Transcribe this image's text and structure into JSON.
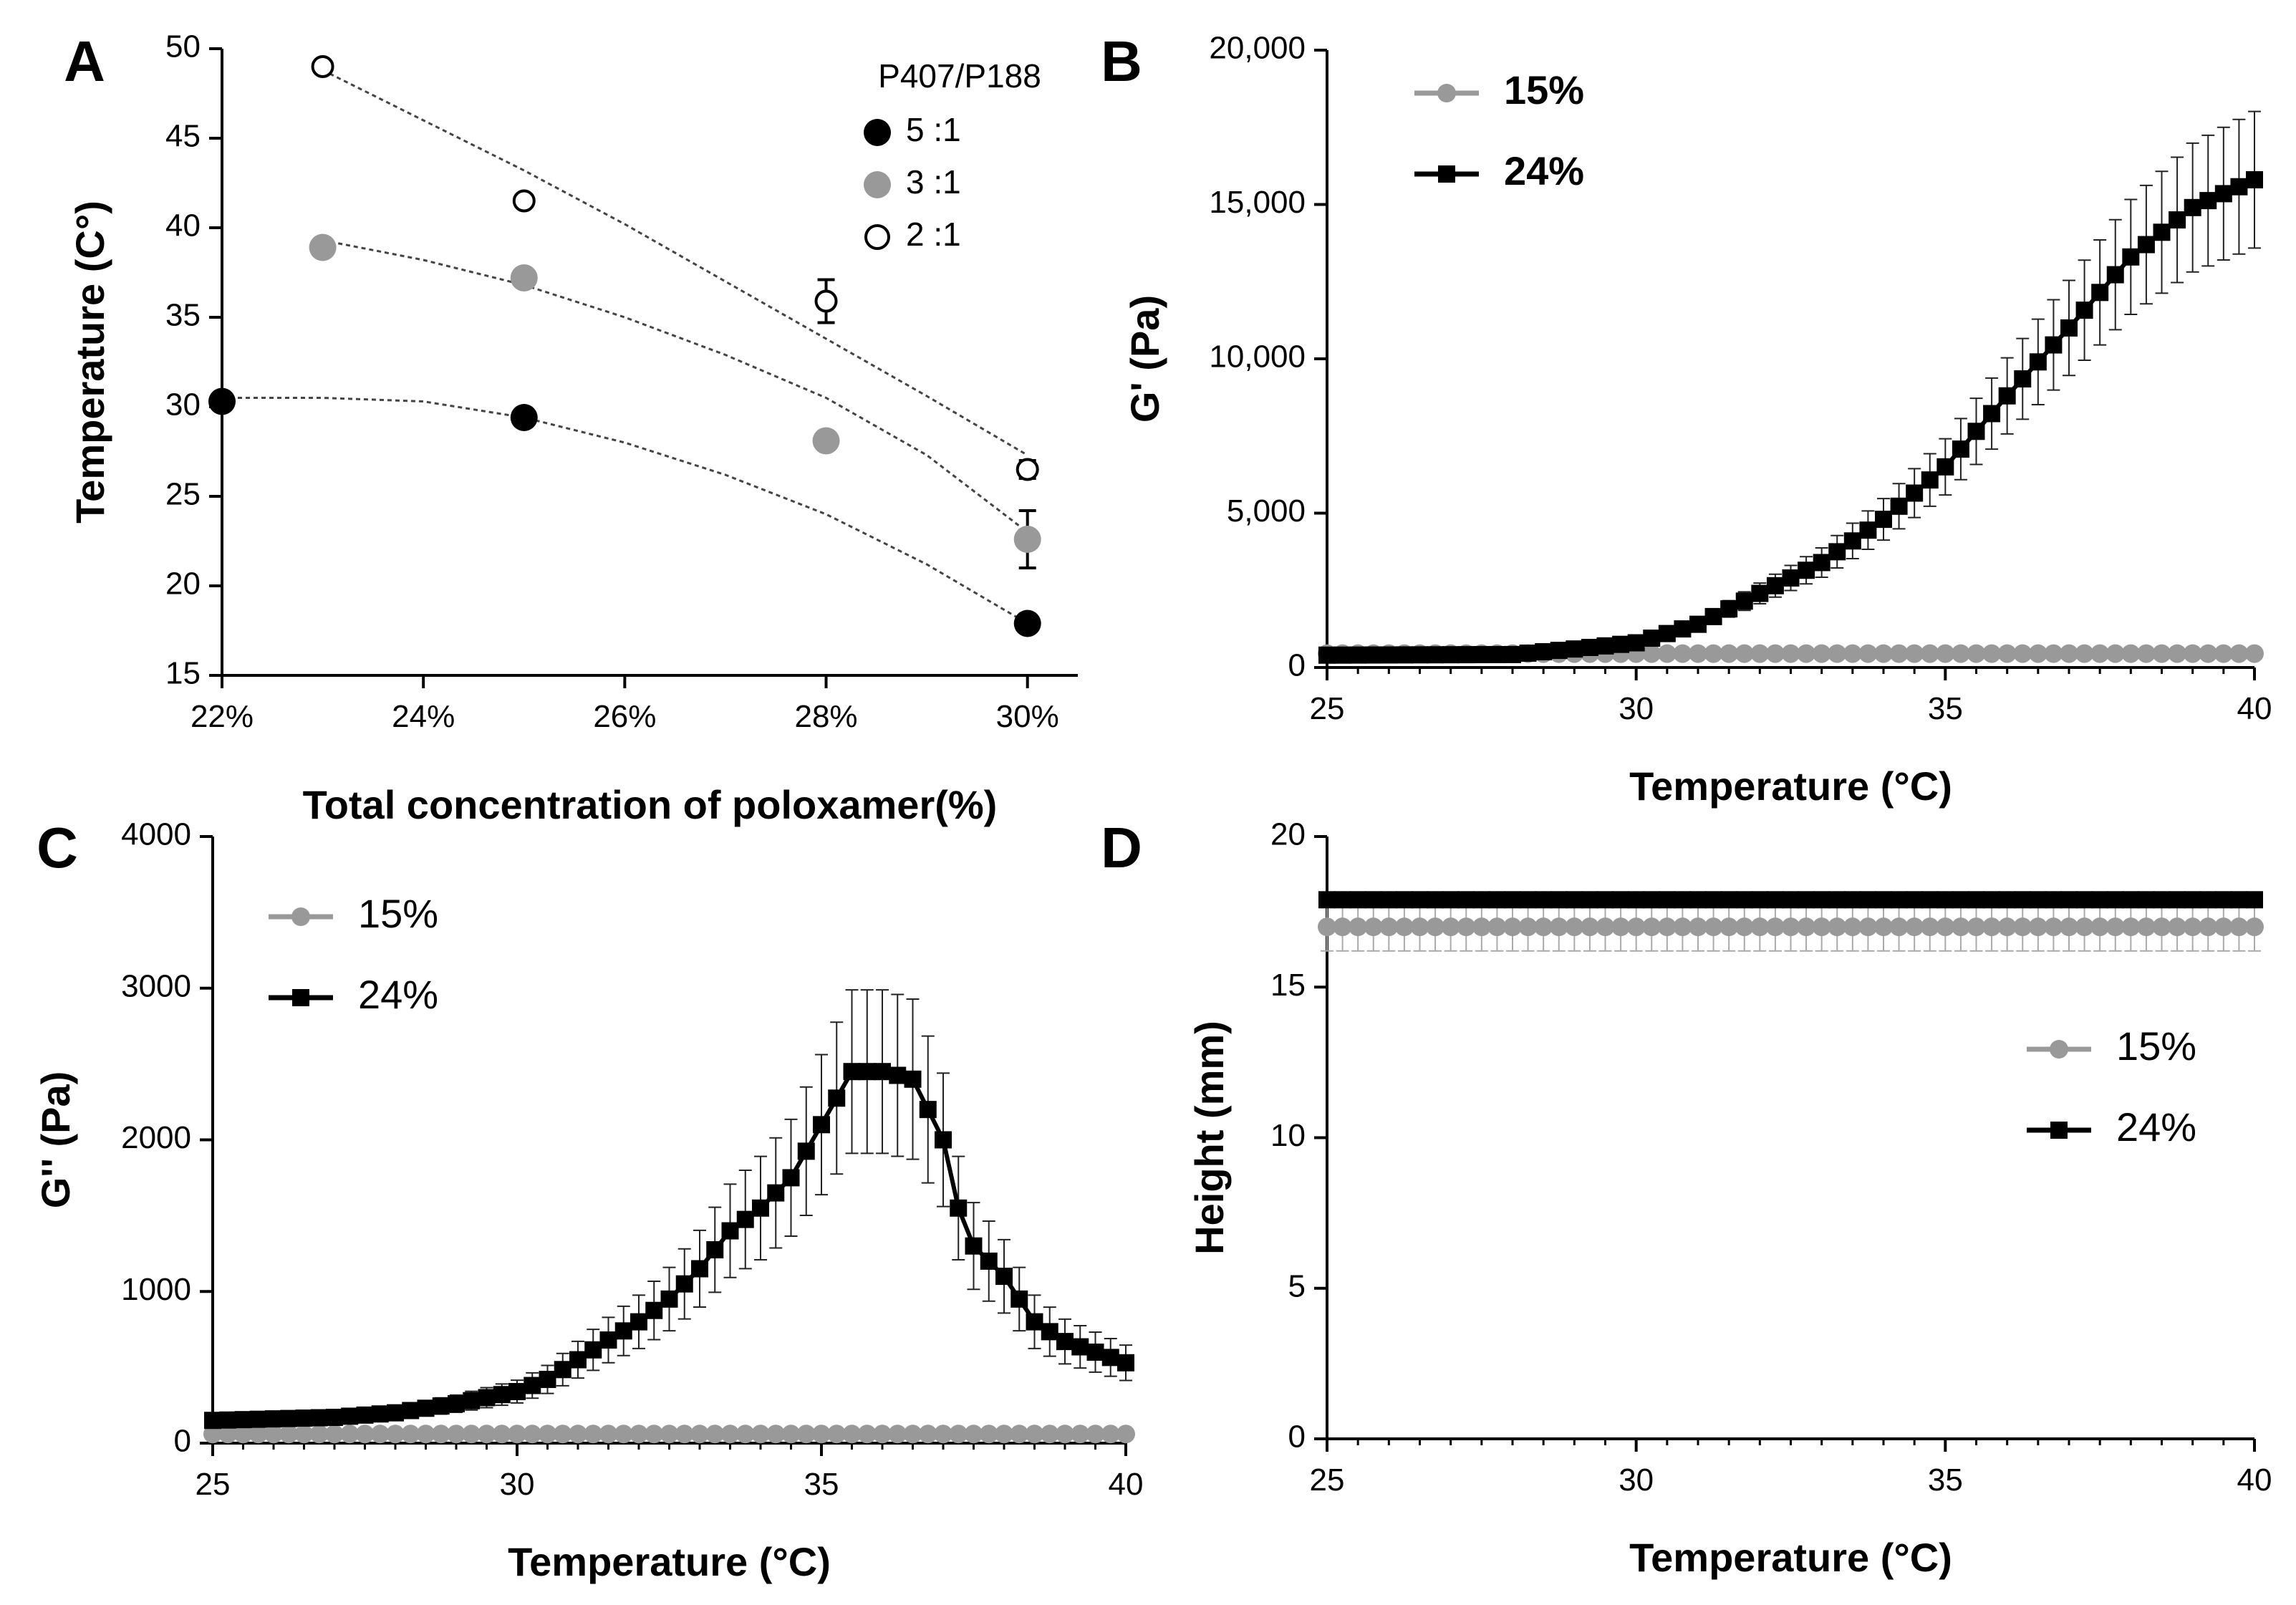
{
  "chart_data": [
    {
      "panel": "A",
      "type": "scatter",
      "xlabel": "Total concentration of poloxamer(%)",
      "ylabel": "Temperature (C°)",
      "xlim": [
        22,
        30.5
      ],
      "ylim": [
        15,
        50
      ],
      "x_ticks": [
        22,
        24,
        26,
        28,
        30
      ],
      "x_tick_labels": [
        "22%",
        "24%",
        "26%",
        "28%",
        "30%"
      ],
      "y_ticks": [
        15,
        20,
        25,
        30,
        35,
        40,
        45,
        50
      ],
      "y_tick_labels": [
        "15",
        "20",
        "25",
        "30",
        "35",
        "40",
        "45",
        "50"
      ],
      "legend_title": "P407/P188",
      "legend_position": "top-right",
      "series": [
        {
          "name": "5 :1",
          "color": "#000000",
          "marker": "filled-circle",
          "x": [
            22,
            25,
            30
          ],
          "y": [
            30.3,
            29.4,
            17.9
          ],
          "err": [
            0,
            0,
            0
          ],
          "trend": [
            [
              22,
              30.5
            ],
            [
              23,
              30.5
            ],
            [
              24,
              30.3
            ],
            [
              25,
              29.4
            ],
            [
              26,
              28.0
            ],
            [
              27,
              26.2
            ],
            [
              28,
              24.0
            ],
            [
              29,
              21.2
            ],
            [
              30,
              17.9
            ]
          ]
        },
        {
          "name": "3 :1",
          "color": "#999999",
          "marker": "filled-circle",
          "x": [
            23,
            25,
            28,
            30
          ],
          "y": [
            38.9,
            37.2,
            28.1,
            22.6
          ],
          "err": [
            0,
            0,
            0,
            1.6
          ],
          "trend": [
            [
              23,
              39.3
            ],
            [
              24,
              38.2
            ],
            [
              25,
              36.8
            ],
            [
              26,
              35.0
            ],
            [
              27,
              32.9
            ],
            [
              28,
              30.5
            ],
            [
              29,
              27.3
            ],
            [
              30,
              23.0
            ]
          ]
        },
        {
          "name": "2 :1",
          "color": "#ffffff",
          "marker": "open-circle",
          "x": [
            23,
            25,
            28,
            30
          ],
          "y": [
            49.0,
            41.5,
            35.9,
            26.5
          ],
          "err": [
            0,
            0,
            1.2,
            0.5
          ],
          "trend": [
            [
              23,
              48.8
            ],
            [
              24,
              46.0
            ],
            [
              25,
              43.2
            ],
            [
              26,
              40.2
            ],
            [
              27,
              37.0
            ],
            [
              28,
              33.8
            ],
            [
              29,
              30.6
            ],
            [
              30,
              27.3
            ]
          ]
        }
      ]
    },
    {
      "panel": "B",
      "type": "line",
      "xlabel": "Temperature (°C)",
      "ylabel": "G' (Pa)",
      "xlim": [
        25,
        40
      ],
      "ylim": [
        0,
        20000
      ],
      "x_ticks": [
        25,
        30,
        35,
        40
      ],
      "x_tick_labels": [
        "25",
        "30",
        "35",
        "40"
      ],
      "y_ticks": [
        0,
        5000,
        10000,
        15000,
        20000
      ],
      "y_tick_labels": [
        "0",
        "5,000",
        "10,000",
        "15,000",
        "20,000"
      ],
      "legend_position": "top-left",
      "series": [
        {
          "name": "15%",
          "color": "#999999",
          "marker": "circle",
          "values": [
            [
              25,
              450
            ],
            [
              40,
              450
            ]
          ]
        },
        {
          "name": "24%",
          "color": "#000000",
          "marker": "square",
          "values": [
            [
              25,
              400
            ],
            [
              28,
              420
            ],
            [
              29,
              600
            ],
            [
              30,
              800
            ],
            [
              31,
              1400
            ],
            [
              32,
              2400
            ],
            [
              33,
              3400
            ],
            [
              34,
              4800
            ],
            [
              35,
              6500
            ],
            [
              36,
              8800
            ],
            [
              37,
              11000
            ],
            [
              38,
              13300
            ],
            [
              39,
              14900
            ],
            [
              40,
              15800
            ]
          ]
        }
      ]
    },
    {
      "panel": "C",
      "type": "line",
      "xlabel": "Temperature (°C)",
      "ylabel": "G'' (Pa)",
      "xlim": [
        25,
        40
      ],
      "ylim": [
        0,
        4000
      ],
      "x_ticks": [
        25,
        30,
        35,
        40
      ],
      "x_tick_labels": [
        "25",
        "30",
        "35",
        "40"
      ],
      "y_ticks": [
        0,
        1000,
        2000,
        3000,
        4000
      ],
      "y_tick_labels": [
        "0",
        "1000",
        "2000",
        "3000",
        "4000"
      ],
      "legend_position": "top-left",
      "series": [
        {
          "name": "15%",
          "color": "#999999",
          "marker": "circle",
          "values": [
            [
              25,
              60
            ],
            [
              40,
              60
            ]
          ]
        },
        {
          "name": "24%",
          "color": "#000000",
          "marker": "square",
          "values": [
            [
              25,
              150
            ],
            [
              27,
              170
            ],
            [
              28,
              200
            ],
            [
              29,
              260
            ],
            [
              30,
              340
            ],
            [
              30.5,
              420
            ],
            [
              31,
              550
            ],
            [
              31.5,
              680
            ],
            [
              32,
              800
            ],
            [
              32.5,
              950
            ],
            [
              33,
              1150
            ],
            [
              33.5,
              1400
            ],
            [
              34,
              1550
            ],
            [
              34.5,
              1750
            ],
            [
              35,
              2100
            ],
            [
              35.5,
              2450
            ],
            [
              36,
              2450
            ],
            [
              36.5,
              2400
            ],
            [
              37,
              2000
            ],
            [
              37.2,
              1600
            ],
            [
              37.5,
              1300
            ],
            [
              38,
              1100
            ],
            [
              38.5,
              800
            ],
            [
              39,
              670
            ],
            [
              39.5,
              600
            ],
            [
              40,
              530
            ]
          ]
        }
      ]
    },
    {
      "panel": "D",
      "type": "line",
      "xlabel": "Temperature (°C)",
      "ylabel": "Height (mm)",
      "xlim": [
        25,
        40
      ],
      "ylim": [
        0,
        20
      ],
      "x_ticks": [
        25,
        30,
        35,
        40
      ],
      "x_tick_labels": [
        "25",
        "30",
        "35",
        "40"
      ],
      "y_ticks": [
        0,
        5,
        10,
        15,
        20
      ],
      "y_tick_labels": [
        "0",
        "5",
        "10",
        "15",
        "20"
      ],
      "legend_position": "right",
      "series": [
        {
          "name": "15%",
          "color": "#999999",
          "marker": "circle",
          "values": [
            [
              25,
              17.0
            ],
            [
              40,
              17.0
            ]
          ]
        },
        {
          "name": "24%",
          "color": "#000000",
          "marker": "square",
          "values": [
            [
              25,
              17.9
            ],
            [
              40,
              17.9
            ]
          ]
        }
      ]
    }
  ]
}
